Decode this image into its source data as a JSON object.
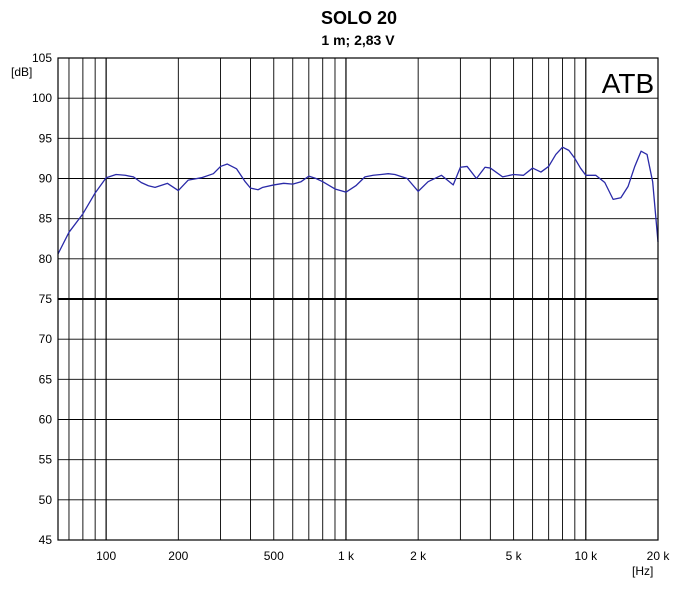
{
  "chart_data": {
    "type": "line",
    "title": "SOLO 20",
    "subtitle": "1 m;  2,83 V",
    "ylabel": "[dB]",
    "xlabel": "[Hz]",
    "logo_text": "ATB",
    "x_scale": "log",
    "xlim": [
      63,
      20000
    ],
    "ylim": [
      45,
      105
    ],
    "grid": true,
    "reference_line_db": 75,
    "y_ticks": [
      105,
      100,
      95,
      90,
      85,
      80,
      75,
      70,
      65,
      60,
      55,
      50,
      45
    ],
    "x_ticks": [
      {
        "value": 100,
        "label": "100"
      },
      {
        "value": 200,
        "label": "200"
      },
      {
        "value": 500,
        "label": "500"
      },
      {
        "value": 1000,
        "label": "1 k"
      },
      {
        "value": 2000,
        "label": "2 k"
      },
      {
        "value": 5000,
        "label": "5 k"
      },
      {
        "value": 10000,
        "label": "10 k"
      },
      {
        "value": 20000,
        "label": "20 k"
      }
    ],
    "colors": {
      "curve": "#2a2aa8",
      "grid": "#000000",
      "reference_line": "#000000"
    },
    "series": [
      {
        "x": [
          63,
          70,
          80,
          90,
          100,
          110,
          120,
          130,
          140,
          150,
          160,
          180,
          200,
          220,
          250,
          280,
          300,
          320,
          350,
          380,
          400,
          430,
          450,
          500,
          550,
          600,
          650,
          700,
          750,
          800,
          900,
          1000,
          1100,
          1200,
          1300,
          1400,
          1500,
          1600,
          1800,
          2000,
          2200,
          2500,
          2800,
          3000,
          3200,
          3500,
          3800,
          4000,
          4500,
          5000,
          5500,
          6000,
          6500,
          7000,
          7500,
          8000,
          8500,
          9000,
          9500,
          10000,
          11000,
          12000,
          13000,
          14000,
          15000,
          16000,
          17000,
          18000,
          19000,
          20000
        ],
        "y": [
          80.6,
          83.3,
          85.6,
          88.2,
          90.1,
          90.5,
          90.4,
          90.2,
          89.5,
          89.1,
          88.9,
          89.4,
          88.5,
          89.8,
          90.1,
          90.6,
          91.5,
          91.8,
          91.2,
          89.6,
          88.8,
          88.6,
          88.9,
          89.2,
          89.4,
          89.3,
          89.6,
          90.3,
          90.0,
          89.6,
          88.7,
          88.3,
          89.1,
          90.2,
          90.4,
          90.5,
          90.6,
          90.5,
          90.0,
          88.4,
          89.6,
          90.4,
          89.2,
          91.4,
          91.5,
          90.0,
          91.4,
          91.3,
          90.2,
          90.5,
          90.4,
          91.3,
          90.8,
          91.5,
          93.0,
          93.9,
          93.5,
          92.5,
          91.3,
          90.4,
          90.4,
          89.5,
          87.4,
          87.6,
          89.0,
          91.5,
          93.4,
          93.0,
          89.6,
          82.1
        ]
      }
    ]
  }
}
